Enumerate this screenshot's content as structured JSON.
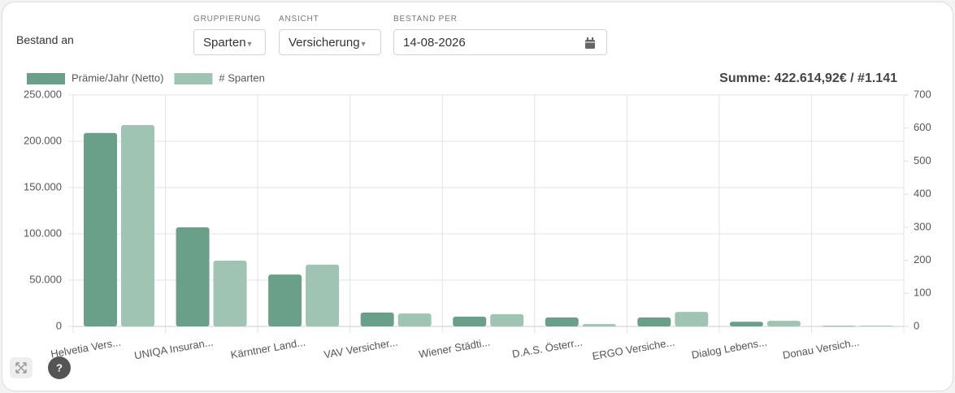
{
  "header": {
    "title": "Bestand an",
    "controls": [
      {
        "label": "GRUPPIERUNG",
        "value": "Sparten"
      },
      {
        "label": "ANSICHT",
        "value": "Versicherung"
      },
      {
        "label": "BESTAND PER",
        "value": "14-08-2026"
      }
    ]
  },
  "chart_data": {
    "type": "bar",
    "summary": "Summe: 422.614,92€ / #1.141",
    "legend": "top-left",
    "grid": true,
    "categories": [
      "Helvetia Vers...",
      "UNIQA Insuran...",
      "Kärntner Land...",
      "VAV Versicher...",
      "Wiener Städti...",
      "D.A.S. Österr...",
      "ERGO Versiche...",
      "Dialog Lebens...",
      "Donau Versich..."
    ],
    "series": [
      {
        "name": "Prämie/Jahr (Netto)",
        "color": "#6aa08a",
        "values": [
          209000,
          107000,
          56000,
          15000,
          10500,
          9600,
          9600,
          5000,
          500
        ]
      },
      {
        "name": "# Sparten",
        "color": "#9fc4b3",
        "axis": "y2",
        "values": [
          609,
          199,
          187,
          39,
          37,
          7,
          44,
          17,
          2
        ]
      }
    ],
    "ylim": [
      0,
      250000
    ],
    "yticks": [
      0,
      {
        "value": 50000,
        "label": "50.000"
      },
      {
        "value": 100000,
        "label": "100.000"
      },
      {
        "value": 150000,
        "label": "150.000"
      },
      {
        "value": 200000,
        "label": "200.000"
      },
      {
        "value": 250000,
        "label": "250.000"
      }
    ],
    "y2lim": [
      0,
      700
    ],
    "y2ticks": [
      0,
      100,
      200,
      300,
      400,
      500,
      600,
      700
    ]
  }
}
